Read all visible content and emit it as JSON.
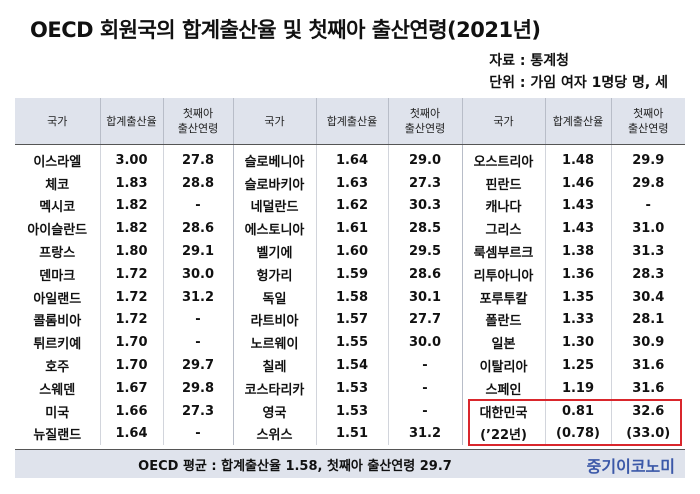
{
  "title": "OECD 회원국의 합계출산율 및 첫째아 출산연령(2021년)",
  "source": "자료 : 통계청",
  "unit": "단위 : 가임 여자 1명당 명, 세",
  "table": {
    "headers": {
      "country": "국가",
      "tfr": "합계출산율",
      "age_line1": "첫째아",
      "age_line2": "출산연령"
    },
    "rows": [
      [
        {
          "c": "이스라엘",
          "r": "3.00",
          "a": "27.8"
        },
        {
          "c": "슬로베니아",
          "r": "1.64",
          "a": "29.0"
        },
        {
          "c": "오스트리아",
          "r": "1.48",
          "a": "29.9"
        }
      ],
      [
        {
          "c": "체코",
          "r": "1.83",
          "a": "28.8"
        },
        {
          "c": "슬로바키아",
          "r": "1.63",
          "a": "27.3"
        },
        {
          "c": "핀란드",
          "r": "1.46",
          "a": "29.8"
        }
      ],
      [
        {
          "c": "멕시코",
          "r": "1.82",
          "a": "-"
        },
        {
          "c": "네덜란드",
          "r": "1.62",
          "a": "30.3"
        },
        {
          "c": "캐나다",
          "r": "1.43",
          "a": "-"
        }
      ],
      [
        {
          "c": "아이슬란드",
          "r": "1.82",
          "a": "28.6"
        },
        {
          "c": "에스토니아",
          "r": "1.61",
          "a": "28.5"
        },
        {
          "c": "그리스",
          "r": "1.43",
          "a": "31.0"
        }
      ],
      [
        {
          "c": "프랑스",
          "r": "1.80",
          "a": "29.1"
        },
        {
          "c": "벨기에",
          "r": "1.60",
          "a": "29.5"
        },
        {
          "c": "룩셈부르크",
          "r": "1.38",
          "a": "31.3"
        }
      ],
      [
        {
          "c": "덴마크",
          "r": "1.72",
          "a": "30.0"
        },
        {
          "c": "헝가리",
          "r": "1.59",
          "a": "28.6"
        },
        {
          "c": "리투아니아",
          "r": "1.36",
          "a": "28.3"
        }
      ],
      [
        {
          "c": "아일랜드",
          "r": "1.72",
          "a": "31.2"
        },
        {
          "c": "독일",
          "r": "1.58",
          "a": "30.1"
        },
        {
          "c": "포루투칼",
          "r": "1.35",
          "a": "30.4"
        }
      ],
      [
        {
          "c": "콜롬비아",
          "r": "1.72",
          "a": "-"
        },
        {
          "c": "라트비아",
          "r": "1.57",
          "a": "27.7"
        },
        {
          "c": "폴란드",
          "r": "1.33",
          "a": "28.1"
        }
      ],
      [
        {
          "c": "튀르키예",
          "r": "1.70",
          "a": "-"
        },
        {
          "c": "노르웨이",
          "r": "1.55",
          "a": "30.0"
        },
        {
          "c": "일본",
          "r": "1.30",
          "a": "30.9"
        }
      ],
      [
        {
          "c": "호주",
          "r": "1.70",
          "a": "29.7"
        },
        {
          "c": "칠레",
          "r": "1.54",
          "a": "-"
        },
        {
          "c": "이탈리아",
          "r": "1.25",
          "a": "31.6"
        }
      ],
      [
        {
          "c": "스웨덴",
          "r": "1.67",
          "a": "29.8"
        },
        {
          "c": "코스타리카",
          "r": "1.53",
          "a": "-"
        },
        {
          "c": "스페인",
          "r": "1.19",
          "a": "31.6"
        }
      ],
      [
        {
          "c": "미국",
          "r": "1.66",
          "a": "27.3"
        },
        {
          "c": "영국",
          "r": "1.53",
          "a": "-"
        },
        {
          "c": "대한민국",
          "r": "0.81",
          "a": "32.6"
        }
      ],
      [
        {
          "c": "뉴질랜드",
          "r": "1.64",
          "a": "-"
        },
        {
          "c": "스위스",
          "r": "1.51",
          "a": "31.2"
        },
        {
          "c": "(’22년)",
          "r": "(0.78)",
          "a": "(33.0)"
        }
      ]
    ]
  },
  "footer": "OECD 평균 : 합계출산율 1.58, 첫째아 출산연령 29.7",
  "brand": "중기이코노미",
  "colors": {
    "header_bg": "#dfe3ec",
    "highlight": "#d9262c",
    "brand": "#3b58a8"
  }
}
